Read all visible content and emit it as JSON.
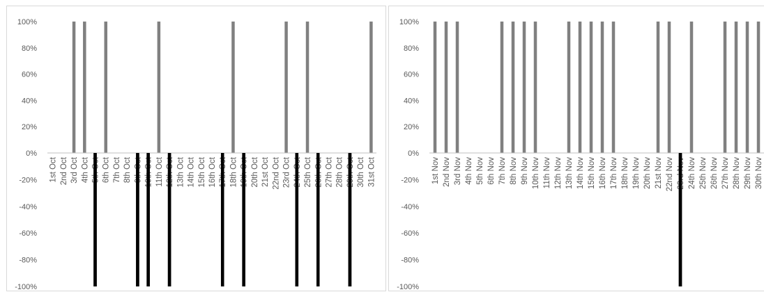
{
  "chart_data": [
    {
      "type": "bar",
      "categories": [
        "1st Oct",
        "2nd Oct",
        "3rd Oct",
        "4th Oct",
        "5th Oct",
        "6th Oct",
        "7th Oct",
        "8th Oct",
        "9th Oct",
        "10th Oct",
        "11th Oct",
        "12th Oct",
        "13th Oct",
        "14th Oct",
        "15th Oct",
        "16th Oct",
        "17th Oct",
        "18th Oct",
        "19th Oct",
        "20th Oct",
        "21st Oct",
        "22nd Oct",
        "23rd Oct",
        "24th Oct",
        "25th Oct",
        "26th Oct",
        "27th Oct",
        "28th Oct",
        "29th Oct",
        "30th Oct",
        "31st Oct"
      ],
      "series": [
        {
          "color": "#808080",
          "values": [
            0,
            0,
            100,
            100,
            0,
            100,
            0,
            0,
            0,
            0,
            100,
            0,
            0,
            0,
            0,
            0,
            0,
            100,
            0,
            0,
            0,
            0,
            100,
            0,
            100,
            0,
            0,
            0,
            0,
            0,
            100
          ]
        },
        {
          "color": "#000000",
          "values": [
            0,
            0,
            0,
            0,
            -100,
            0,
            0,
            0,
            -100,
            -100,
            0,
            -100,
            0,
            0,
            0,
            0,
            -100,
            0,
            -100,
            0,
            0,
            0,
            0,
            -100,
            0,
            -100,
            0,
            0,
            -100,
            0,
            0
          ]
        }
      ],
      "ylim": [
        -100,
        100
      ],
      "yticks": [
        "100%",
        "80%",
        "60%",
        "40%",
        "20%",
        "0%",
        "-20%",
        "-40%",
        "-60%",
        "-80%",
        "-100%"
      ],
      "grid": false,
      "legend": "none"
    },
    {
      "type": "bar",
      "categories": [
        "1st Nov",
        "2nd Nov",
        "3rd Nov",
        "4th Nov",
        "5th Nov",
        "6th Nov",
        "7th Nov",
        "8th Nov",
        "9th Nov",
        "10th Nov",
        "11th Nov",
        "12th Nov",
        "13th Nov",
        "14th Nov",
        "15th Nov",
        "16th Nov",
        "17th Nov",
        "18th Nov",
        "19th Nov",
        "20th Nov",
        "21st Nov",
        "22nd Nov",
        "23rd Nov",
        "24th Nov",
        "25th Nov",
        "26th Nov",
        "27th Nov",
        "28th Nov",
        "29th Nov",
        "30th Nov"
      ],
      "series": [
        {
          "color": "#808080",
          "values": [
            100,
            100,
            100,
            0,
            0,
            0,
            100,
            100,
            100,
            100,
            0,
            0,
            100,
            100,
            100,
            100,
            100,
            0,
            0,
            0,
            100,
            100,
            0,
            100,
            0,
            0,
            100,
            100,
            100,
            100
          ]
        },
        {
          "color": "#000000",
          "values": [
            0,
            0,
            0,
            0,
            0,
            0,
            0,
            0,
            0,
            0,
            0,
            0,
            0,
            0,
            0,
            0,
            0,
            0,
            0,
            0,
            0,
            0,
            -100,
            0,
            0,
            0,
            0,
            0,
            0,
            0
          ]
        }
      ],
      "ylim": [
        -100,
        100
      ],
      "yticks": [
        "100%",
        "80%",
        "60%",
        "40%",
        "20%",
        "0%",
        "-20%",
        "-40%",
        "-60%",
        "-80%",
        "-100%"
      ],
      "grid": false,
      "legend": "none"
    }
  ]
}
